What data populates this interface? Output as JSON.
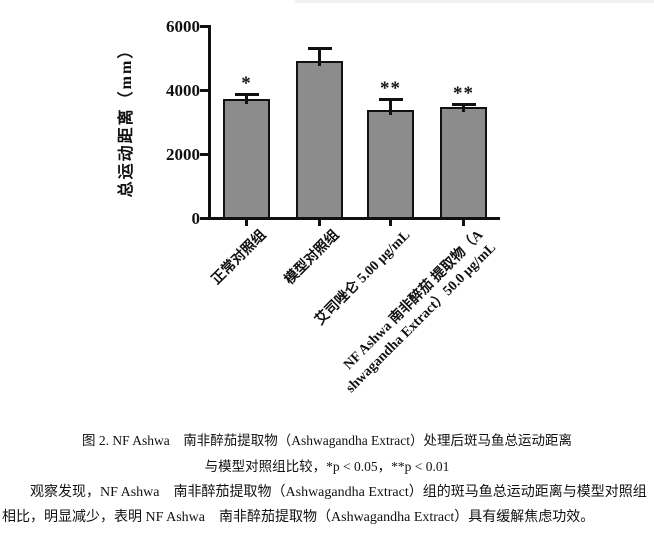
{
  "chart_data": {
    "type": "bar",
    "title": "",
    "xlabel": "",
    "ylabel": "总运动距离（mm）",
    "ylim": [
      0,
      6000
    ],
    "yticks": [
      0,
      2000,
      4000,
      6000
    ],
    "grid": false,
    "legend": null,
    "bar_color": "#8c8c8c",
    "bar_border_color": "#111111",
    "categories": [
      "正常对照组",
      "模型对照组",
      "艾司唑仑 5.00 μg/mL",
      "NF Ashwa 南非醉茄 提取物（Ashwagandha Extract）50.0 μg/mL"
    ],
    "category_display_lines": [
      [
        "正常对照组"
      ],
      [
        "模型对照组"
      ],
      [
        "艾司唑仑 5.00 μg/mL"
      ],
      [
        "NF Ashwa 南非醉茄 提取物（A",
        "shwagandha Extract）50.0 μg/mL"
      ]
    ],
    "values": [
      3700,
      4890,
      3340,
      3450
    ],
    "errors_upper": [
      170,
      420,
      390,
      120
    ],
    "significance": [
      "*",
      "",
      "**",
      "**"
    ]
  },
  "figure": {
    "caption_line1": "图 2. NF Ashwa　南非醉茄提取物（Ashwagandha Extract）处理后斑马鱼总运动距离",
    "caption_line2": "与模型对照组比较，*p < 0.05，**p < 0.01"
  },
  "body": {
    "paragraph": "观察发现，NF Ashwa　南非醉茄提取物（Ashwagandha Extract）组的斑马鱼总运动距离与模型对照组相比，明显减少，表明 NF Ashwa　南非醉茄提取物（Ashwagandha Extract）具有缓解焦虑功效。"
  }
}
